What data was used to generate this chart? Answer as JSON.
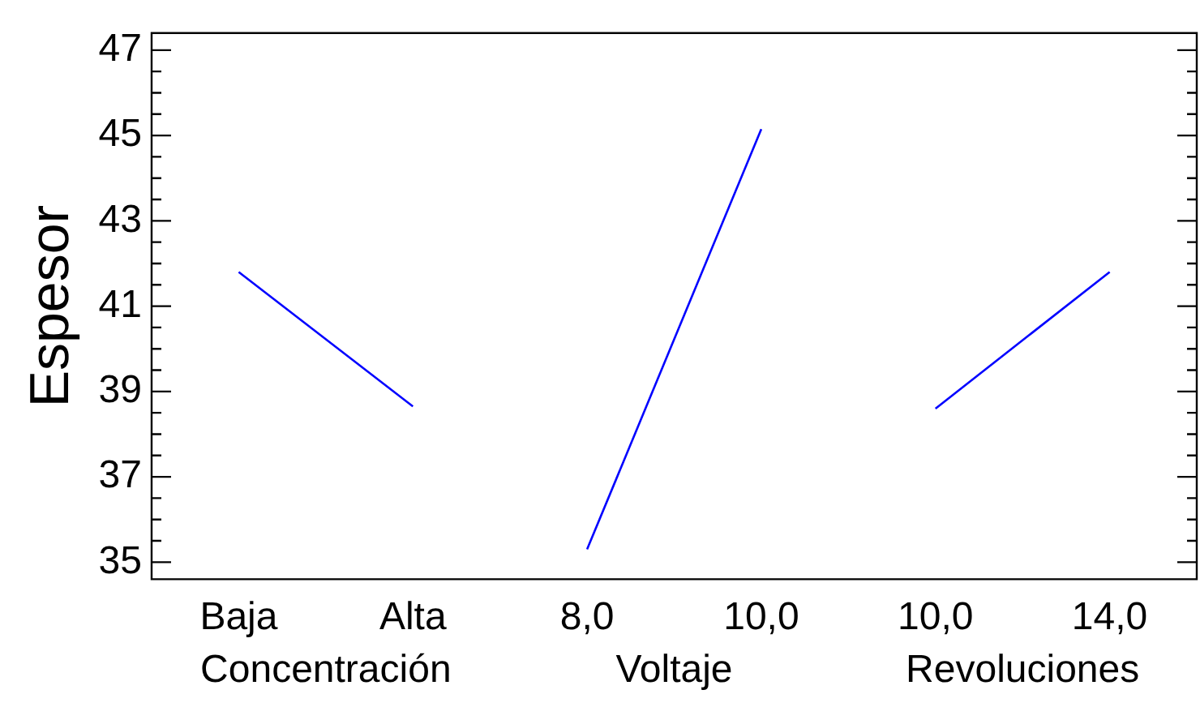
{
  "chart_data": {
    "type": "line",
    "ylabel": "Espesor",
    "categories": [
      "Baja",
      "Alta",
      "8,0",
      "10,0",
      "10,0",
      "14,0"
    ],
    "series": [
      {
        "color": "#0000ff",
        "values": [
          41.8,
          38.65,
          null,
          null,
          null,
          null
        ]
      },
      {
        "color": "#0000ff",
        "values": [
          null,
          null,
          35.3,
          45.15,
          null,
          null
        ]
      },
      {
        "color": "#0000ff",
        "values": [
          null,
          null,
          null,
          null,
          38.6,
          41.8
        ]
      }
    ],
    "ylim": [
      34.6,
      47.4
    ],
    "yticks": [
      35,
      {
        "value": 35.5,
        "label": null
      },
      {
        "value": 36,
        "label": null
      },
      {
        "value": 36.5,
        "label": null
      },
      37,
      {
        "value": 37.5,
        "label": null
      },
      {
        "value": 38,
        "label": null
      },
      {
        "value": 38.5,
        "label": null
      },
      39,
      {
        "value": 39.5,
        "label": null
      },
      {
        "value": 40,
        "label": null
      },
      {
        "value": 40.5,
        "label": null
      },
      41,
      {
        "value": 41.5,
        "label": null
      },
      {
        "value": 42,
        "label": null
      },
      {
        "value": 42.5,
        "label": null
      },
      43,
      {
        "value": 43.5,
        "label": null
      },
      {
        "value": 44,
        "label": null
      },
      {
        "value": 44.5,
        "label": null
      },
      45,
      {
        "value": 45.5,
        "label": null
      },
      {
        "value": 46,
        "label": null
      },
      {
        "value": 46.5,
        "label": null
      },
      47
    ],
    "annotations": [
      "Concentración",
      "Voltaje",
      "Revoluciones"
    ],
    "grid": false,
    "legend": false,
    "marker": "none",
    "line_style": "solid"
  }
}
